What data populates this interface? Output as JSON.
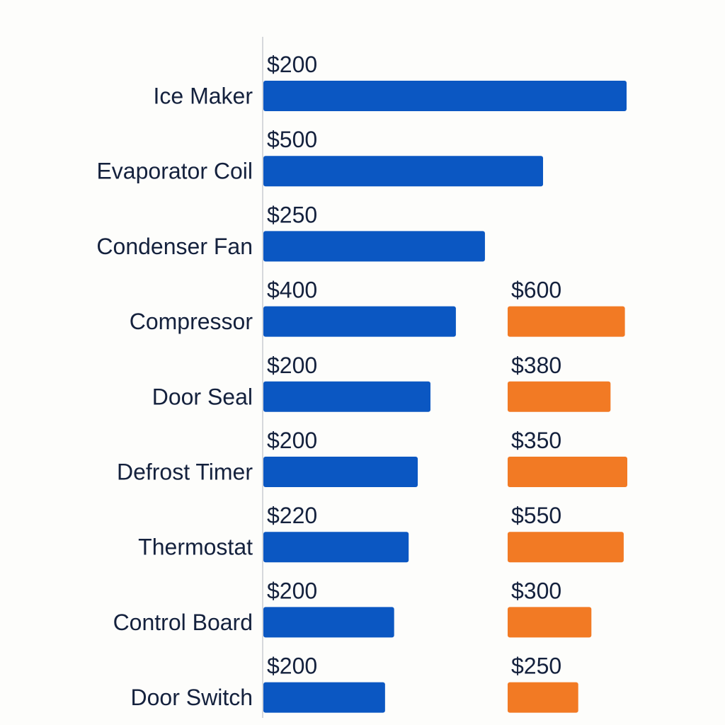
{
  "chart_data": {
    "type": "bar",
    "orientation": "horizontal",
    "categories": [
      "Ice Maker",
      "Evaporator Coil",
      "Condenser Fan",
      "Compressor",
      "Door Seal",
      "Defrost Timer",
      "Thermostat",
      "Control Board",
      "Door Switch"
    ],
    "series": [
      {
        "color": "#0b57c2",
        "values": [
          200,
          500,
          250,
          400,
          200,
          200,
          220,
          200,
          200
        ],
        "labels": [
          "$200",
          "$500",
          "$250",
          "$400",
          "$200",
          "$200",
          "$220",
          "$200",
          "$200"
        ],
        "bar_fraction": [
          1.0,
          0.77,
          0.61,
          0.53,
          0.46,
          0.425,
          0.4,
          0.36,
          0.335
        ]
      },
      {
        "color": "#f27a24",
        "values": [
          null,
          null,
          null,
          600,
          380,
          350,
          550,
          300,
          250
        ],
        "labels": [
          null,
          null,
          null,
          "$600",
          "$380",
          "$350",
          "$550",
          "$300",
          "$250"
        ],
        "bar_fraction": [
          null,
          null,
          null,
          0.98,
          0.86,
          1.0,
          0.97,
          0.7,
          0.59
        ]
      }
    ],
    "title": "",
    "xlabel": "",
    "ylabel": "",
    "grid": false,
    "legend": "none"
  }
}
